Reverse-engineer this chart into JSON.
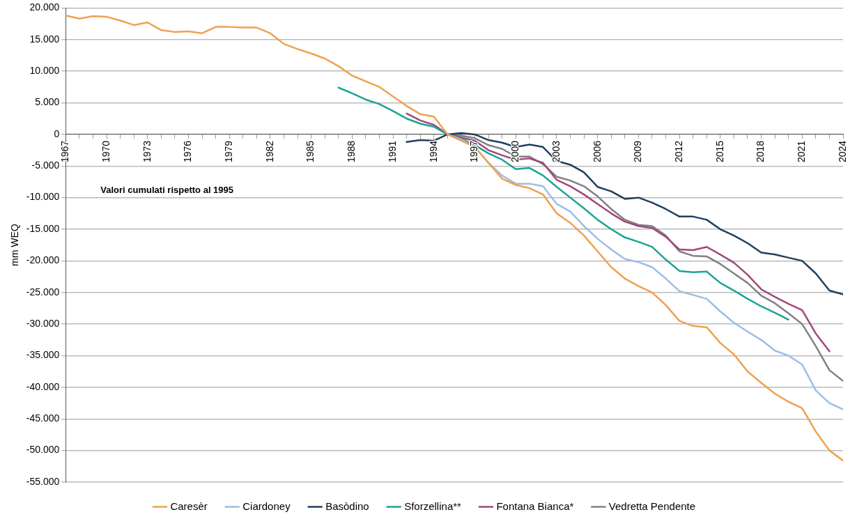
{
  "chart_data": {
    "type": "line",
    "ylabel": "mm WEQ",
    "annotations": [
      "Valori cumulati rispetto al 1995"
    ],
    "x": [
      1967,
      1968,
      1969,
      1970,
      1971,
      1972,
      1973,
      1974,
      1975,
      1976,
      1977,
      1978,
      1979,
      1980,
      1981,
      1982,
      1983,
      1984,
      1985,
      1986,
      1987,
      1988,
      1989,
      1990,
      1991,
      1992,
      1993,
      1994,
      1995,
      1996,
      1997,
      1998,
      1999,
      2000,
      2001,
      2002,
      2003,
      2004,
      2005,
      2006,
      2007,
      2008,
      2009,
      2010,
      2011,
      2012,
      2013,
      2014,
      2015,
      2016,
      2017,
      2018,
      2019,
      2020,
      2021,
      2022,
      2023,
      2024
    ],
    "xlim": [
      1967,
      2024
    ],
    "xticks": [
      1967,
      {
        "value": 1968,
        "label": null
      },
      {
        "value": 1969,
        "label": null
      },
      1970,
      {
        "value": 1971,
        "label": null
      },
      {
        "value": 1972,
        "label": null
      },
      1973,
      {
        "value": 1974,
        "label": null
      },
      {
        "value": 1975,
        "label": null
      },
      1976,
      {
        "value": 1977,
        "label": null
      },
      {
        "value": 1978,
        "label": null
      },
      1979,
      {
        "value": 1980,
        "label": null
      },
      {
        "value": 1981,
        "label": null
      },
      1982,
      {
        "value": 1983,
        "label": null
      },
      {
        "value": 1984,
        "label": null
      },
      1985,
      {
        "value": 1986,
        "label": null
      },
      {
        "value": 1987,
        "label": null
      },
      1988,
      {
        "value": 1989,
        "label": null
      },
      {
        "value": 1990,
        "label": null
      },
      1991,
      {
        "value": 1992,
        "label": null
      },
      {
        "value": 1993,
        "label": null
      },
      1994,
      {
        "value": 1995,
        "label": null
      },
      {
        "value": 1996,
        "label": null
      },
      1997,
      {
        "value": 1998,
        "label": null
      },
      {
        "value": 1999,
        "label": null
      },
      2000,
      {
        "value": 2001,
        "label": null
      },
      {
        "value": 2002,
        "label": null
      },
      2003,
      {
        "value": 2004,
        "label": null
      },
      {
        "value": 2005,
        "label": null
      },
      2006,
      {
        "value": 2007,
        "label": null
      },
      {
        "value": 2008,
        "label": null
      },
      2009,
      {
        "value": 2010,
        "label": null
      },
      {
        "value": 2011,
        "label": null
      },
      2012,
      {
        "value": 2013,
        "label": null
      },
      {
        "value": 2014,
        "label": null
      },
      2015,
      {
        "value": 2016,
        "label": null
      },
      {
        "value": 2017,
        "label": null
      },
      2018,
      {
        "value": 2019,
        "label": null
      },
      {
        "value": 2020,
        "label": null
      },
      2021,
      {
        "value": 2022,
        "label": null
      },
      {
        "value": 2023,
        "label": null
      },
      2024
    ],
    "ylim": [
      -55000,
      20000
    ],
    "yticks": [
      {
        "value": 20000,
        "label": "20.000"
      },
      {
        "value": 15000,
        "label": "15.000"
      },
      {
        "value": 10000,
        "label": "10.000"
      },
      {
        "value": 5000,
        "label": "5.000"
      },
      0,
      {
        "value": -5000,
        "label": "-5.000"
      },
      {
        "value": -10000,
        "label": "-10.000"
      },
      {
        "value": -15000,
        "label": "-15.000"
      },
      {
        "value": -20000,
        "label": "-20.000"
      },
      {
        "value": -25000,
        "label": "-25.000"
      },
      {
        "value": -30000,
        "label": "-30.000"
      },
      {
        "value": -35000,
        "label": "-35.000"
      },
      {
        "value": -40000,
        "label": "-40.000"
      },
      {
        "value": -45000,
        "label": "-45.000"
      },
      {
        "value": -50000,
        "label": "-50.000"
      },
      {
        "value": -55000,
        "label": "-55.000"
      }
    ],
    "grid": "y",
    "legend": "bottom",
    "marker": "none",
    "line_style": "solid",
    "series": [
      {
        "name": "Caresèr",
        "color": "#f0a050",
        "values": [
          18800,
          18300,
          18700,
          18600,
          18000,
          17300,
          17700,
          16500,
          16200,
          16300,
          16000,
          17000,
          17000,
          16900,
          16900,
          16000,
          14300,
          13500,
          12800,
          12000,
          10800,
          9300,
          8400,
          7500,
          6000,
          4500,
          3200,
          2800,
          0,
          -1000,
          -2000,
          -4500,
          -7000,
          -8000,
          -8500,
          -9500,
          -12500,
          -14000,
          -16000,
          -18500,
          -21000,
          -22800,
          -24000,
          -25000,
          -27000,
          -29500,
          -30300,
          -30500,
          -33000,
          -34800,
          -37500,
          -39300,
          -41000,
          -42300,
          -43300,
          -47000,
          -50000,
          -51600
        ]
      },
      {
        "name": "Ciardoney",
        "color": "#9dbde6",
        "values": [
          null,
          null,
          null,
          null,
          null,
          null,
          null,
          null,
          null,
          null,
          null,
          null,
          null,
          null,
          null,
          null,
          null,
          null,
          null,
          null,
          null,
          null,
          null,
          null,
          null,
          null,
          null,
          null,
          0,
          -800,
          -2000,
          -4500,
          -6500,
          -7800,
          -7800,
          -8200,
          -11000,
          -12200,
          -14500,
          -16500,
          -18200,
          -19700,
          -20200,
          -21000,
          -22800,
          -24800,
          -25400,
          -26000,
          -28000,
          -29800,
          -31200,
          -32500,
          -34200,
          -35000,
          -36400,
          -40500,
          -42500,
          -43500
        ]
      },
      {
        "name": "Basòdino",
        "color": "#1f3f5f",
        "values": [
          null,
          null,
          null,
          null,
          null,
          null,
          null,
          null,
          null,
          null,
          null,
          null,
          null,
          null,
          null,
          null,
          null,
          null,
          null,
          null,
          null,
          null,
          null,
          null,
          null,
          -1200,
          -900,
          -1000,
          0,
          200,
          0,
          -900,
          -1300,
          -2000,
          -1600,
          -2000,
          -4200,
          -4800,
          -6000,
          -8300,
          -9000,
          -10200,
          -10000,
          -10800,
          -11800,
          -13000,
          -13000,
          -13500,
          -15000,
          -16000,
          -17200,
          -18700,
          -19000,
          -19500,
          -20000,
          -22000,
          -24700,
          -25300
        ]
      },
      {
        "name": "Sforzellina**",
        "color": "#1aa394",
        "values": [
          null,
          null,
          null,
          null,
          null,
          null,
          null,
          null,
          null,
          null,
          null,
          null,
          null,
          null,
          null,
          null,
          null,
          null,
          null,
          null,
          7400,
          6500,
          5500,
          4800,
          3700,
          2500,
          1700,
          1200,
          0,
          -700,
          -1700,
          -3000,
          -4000,
          -5500,
          -5300,
          -6500,
          -8300,
          -10000,
          -11700,
          -13500,
          -15000,
          -16300,
          -17000,
          -17800,
          -19800,
          -21600,
          -21800,
          -21700,
          -23500,
          -24700,
          -26000,
          -27200,
          -28200,
          -29300,
          null,
          null,
          null,
          null
        ]
      },
      {
        "name": "Fontana Bianca*",
        "color": "#a0487a",
        "values": [
          null,
          null,
          null,
          null,
          null,
          null,
          null,
          null,
          null,
          null,
          null,
          null,
          null,
          null,
          null,
          null,
          null,
          null,
          null,
          null,
          null,
          null,
          null,
          null,
          null,
          3300,
          2200,
          1500,
          0,
          -500,
          -1000,
          -2500,
          -3300,
          -4000,
          -3800,
          -4500,
          -7200,
          -8200,
          -9500,
          -11000,
          -12500,
          -13800,
          -14500,
          -14800,
          -16200,
          -18200,
          -18300,
          -17800,
          -19000,
          -20300,
          -22200,
          -24500,
          -25700,
          -26800,
          -27800,
          -31500,
          -34300,
          null
        ]
      },
      {
        "name": "Vedretta Pendente",
        "color": "#808080",
        "values": [
          null,
          null,
          null,
          null,
          null,
          null,
          null,
          null,
          null,
          null,
          null,
          null,
          null,
          null,
          null,
          null,
          null,
          null,
          null,
          null,
          null,
          null,
          null,
          null,
          null,
          null,
          null,
          null,
          0,
          -200,
          -600,
          -1700,
          -2300,
          -3500,
          -3500,
          -4700,
          -6700,
          -7300,
          -8200,
          -9800,
          -11800,
          -13500,
          -14300,
          -14500,
          -16000,
          -18500,
          -19200,
          -19300,
          -20500,
          -22000,
          -23500,
          -25500,
          -26700,
          -28300,
          -30000,
          -33500,
          -37300,
          -39000
        ]
      }
    ]
  }
}
